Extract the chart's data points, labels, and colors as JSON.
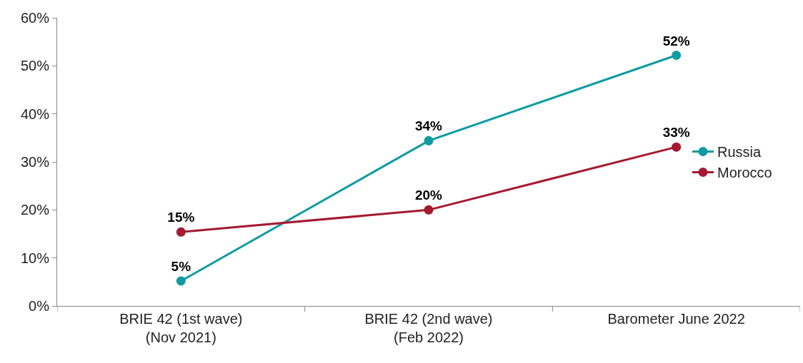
{
  "chart_data": {
    "type": "line",
    "categories": [
      "BRIE 42 (1st wave)\n(Nov 2021)",
      "BRIE 42 (2nd wave)\n(Feb 2022)",
      "Barometer June 2022"
    ],
    "series": [
      {
        "name": "Russia",
        "color": "#0e9ba1",
        "values": [
          5.2,
          34.4,
          52.2
        ],
        "value_labels": [
          "5%",
          "34%",
          "52%"
        ]
      },
      {
        "name": "Morocco",
        "color": "#a51931",
        "values": [
          15.4,
          20,
          33.1
        ],
        "value_labels": [
          "15%",
          "20%",
          "33%"
        ]
      }
    ],
    "ylim": [
      0,
      60
    ],
    "yticks": [
      {
        "value": 0,
        "label": "0%"
      },
      {
        "value": 10,
        "label": "10%"
      },
      {
        "value": 20,
        "label": "20%"
      },
      {
        "value": 30,
        "label": "30%"
      },
      {
        "value": 40,
        "label": "40%"
      },
      {
        "value": 50,
        "label": "50%"
      },
      {
        "value": 60,
        "label": "60%"
      }
    ],
    "legend": "right",
    "marker": "circle",
    "line_style": "solid"
  }
}
